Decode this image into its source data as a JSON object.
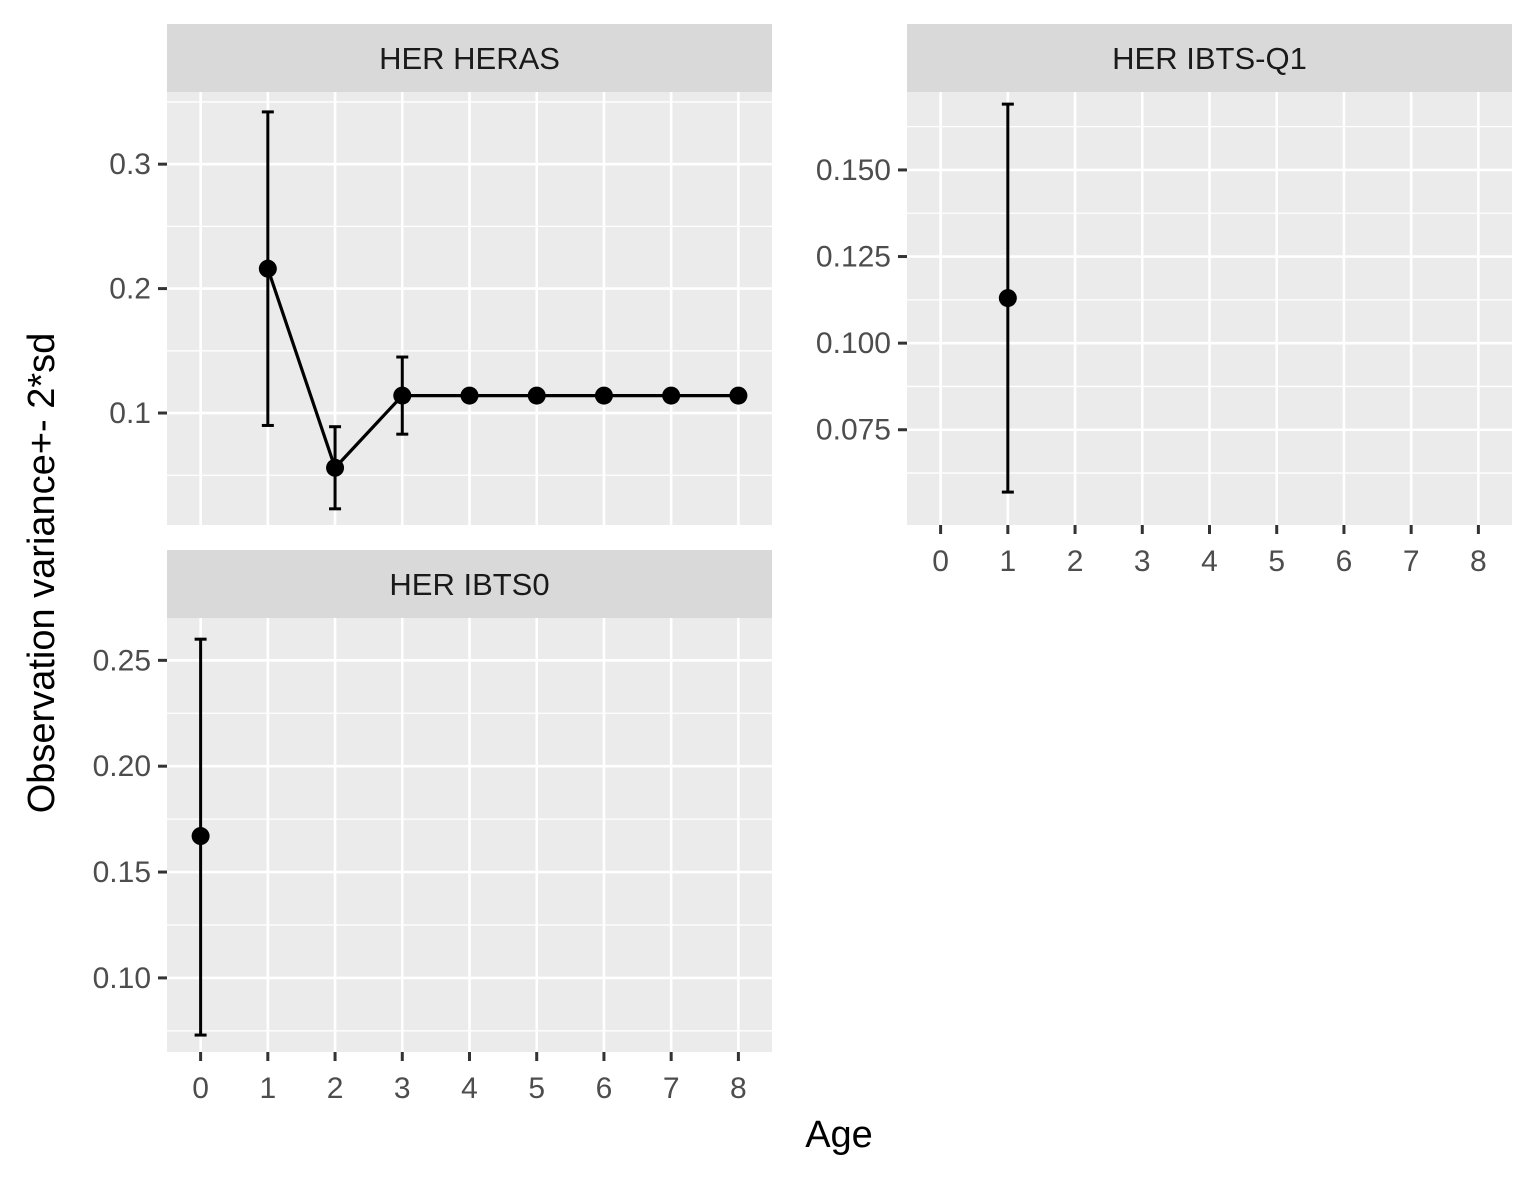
{
  "chart_data": {
    "type": "scatter",
    "xlabel": "Age",
    "ylabel": "Observation variance+- 2*sd",
    "grid": true,
    "colors": {
      "panel_background": "#ebebeb",
      "strip_background": "#d9d9d9",
      "gridline": "#ffffff",
      "series": "#000000"
    },
    "panels": [
      {
        "title": "HER HERAS",
        "xlim": [
          -0.5,
          8.5
        ],
        "ylim": [
          0.01,
          0.358
        ],
        "xticks": [
          0,
          1,
          2,
          3,
          4,
          5,
          6,
          7,
          8
        ],
        "yticks": [
          0.1,
          0.2,
          0.3
        ],
        "ytick_labels": [
          "0.1",
          "0.2",
          "0.3"
        ],
        "show_x_axis": false,
        "points": [
          {
            "x": 1,
            "y": 0.216,
            "lower": 0.09,
            "upper": 0.342
          },
          {
            "x": 2,
            "y": 0.056,
            "lower": 0.023,
            "upper": 0.089
          },
          {
            "x": 3,
            "y": 0.114,
            "lower": 0.083,
            "upper": 0.145
          },
          {
            "x": 4,
            "y": 0.114
          },
          {
            "x": 5,
            "y": 0.114
          },
          {
            "x": 6,
            "y": 0.114
          },
          {
            "x": 7,
            "y": 0.114
          },
          {
            "x": 8,
            "y": 0.114
          }
        ]
      },
      {
        "title": "HER IBTS-Q1",
        "xlim": [
          -0.5,
          8.5
        ],
        "ylim": [
          0.0475,
          0.1725
        ],
        "xticks": [
          0,
          1,
          2,
          3,
          4,
          5,
          6,
          7,
          8
        ],
        "yticks": [
          0.075,
          0.1,
          0.125,
          0.15
        ],
        "ytick_labels": [
          "0.075",
          "0.100",
          "0.125",
          "0.150"
        ],
        "show_x_axis": true,
        "points": [
          {
            "x": 1,
            "y": 0.113,
            "lower": 0.057,
            "upper": 0.169
          }
        ]
      },
      {
        "title": "HER IBTS0",
        "xlim": [
          -0.5,
          8.5
        ],
        "ylim": [
          0.065,
          0.27
        ],
        "xticks": [
          0,
          1,
          2,
          3,
          4,
          5,
          6,
          7,
          8
        ],
        "yticks": [
          0.1,
          0.15,
          0.2,
          0.25
        ],
        "ytick_labels": [
          "0.10",
          "0.15",
          "0.20",
          "0.25"
        ],
        "show_x_axis": true,
        "points": [
          {
            "x": 0,
            "y": 0.167,
            "lower": 0.073,
            "upper": 0.26
          }
        ]
      }
    ]
  }
}
